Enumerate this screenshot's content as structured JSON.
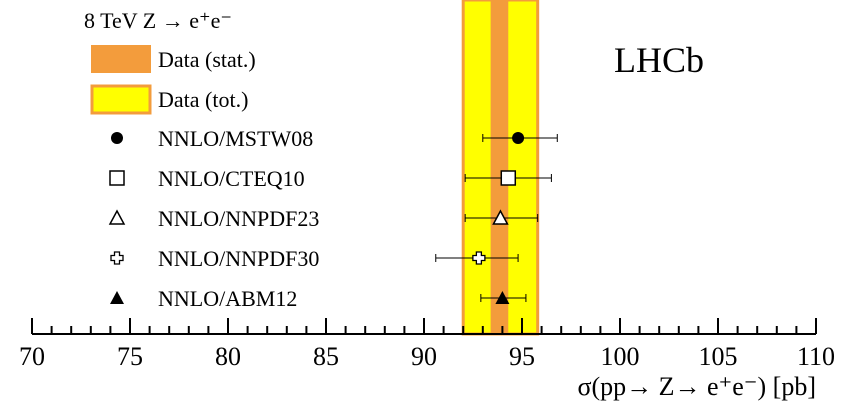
{
  "chart_data": {
    "type": "scatter",
    "header": "8 TeV Z → e⁺e⁻",
    "watermark": "LHCb",
    "xlabel": "σ(pp→ Z→ e⁺e⁻) [pb]",
    "xlim": [
      70,
      110
    ],
    "x_major_ticks": [
      "70",
      "75",
      "80",
      "85",
      "90",
      "95",
      "100",
      "105",
      "110"
    ],
    "x_minor_step": 1,
    "legend_position": "top-left",
    "bands": [
      {
        "name": "Data (tot.)",
        "low": 92.0,
        "high": 95.8,
        "fill": "#ffff00",
        "edge": "#f39c3c"
      },
      {
        "name": "Data (stat.)",
        "low": 93.4,
        "high": 94.3,
        "fill": "#f39c3c",
        "edge": "#f39c3c"
      }
    ],
    "points": [
      {
        "name": "NNLO/MSTW08",
        "marker": "filled-circle",
        "value": 94.8,
        "err_low": 93.0,
        "err_high": 96.8
      },
      {
        "name": "NNLO/CTEQ10",
        "marker": "open-square",
        "value": 94.3,
        "err_low": 92.1,
        "err_high": 96.5
      },
      {
        "name": "NNLO/NNPDF23",
        "marker": "open-triangle",
        "value": 93.9,
        "err_low": 92.1,
        "err_high": 95.8
      },
      {
        "name": "NNLO/NNPDF30",
        "marker": "open-cross",
        "value": 92.8,
        "err_low": 90.6,
        "err_high": 94.8
      },
      {
        "name": "NNLO/ABM12",
        "marker": "filled-triangle",
        "value": 94.0,
        "err_low": 92.9,
        "err_high": 95.2
      }
    ]
  }
}
